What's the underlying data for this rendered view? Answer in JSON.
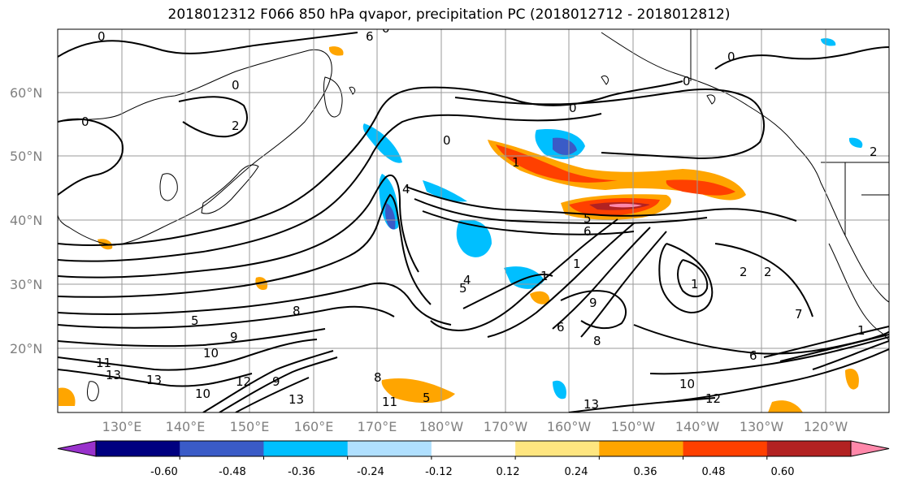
{
  "title": "2018012312 F066 850 hPa qvapor, precipitation PC (2018012712 - 2018012812)",
  "lat_labels": [
    "60°N",
    "50°N",
    "40°N",
    "30°N",
    "20°N"
  ],
  "lon_labels": [
    "130°E",
    "140°E",
    "150°E",
    "160°E",
    "170°E",
    "180°W",
    "170°W",
    "160°W",
    "150°W",
    "140°W",
    "130°W",
    "120°W"
  ],
  "colorbar": {
    "colors": [
      "#9932cc",
      "#000080",
      "#3a5bc7",
      "#00bfff",
      "#b0e0ff",
      "#ffffff",
      "#ffe680",
      "#ffa500",
      "#ff4000",
      "#b22222",
      "#ff88aa"
    ],
    "tick_labels": [
      "-0.60",
      "-0.48",
      "-0.36",
      "-0.24",
      "-0.12",
      "0.12",
      "0.24",
      "0.36",
      "0.48",
      "0.60"
    ]
  },
  "contour_labels": [
    "0",
    "0",
    "0",
    "0",
    "0",
    "2",
    "6",
    "0",
    "1",
    "4",
    "0",
    "1",
    "2",
    "5",
    "8",
    "9",
    "5",
    "10",
    "11",
    "13",
    "13",
    "12",
    "8",
    "10",
    "11",
    "5",
    "9",
    "13",
    "1",
    "4",
    "1",
    "5",
    "2",
    "6",
    "9",
    "8",
    "10",
    "12",
    "13",
    "1",
    "6",
    "7",
    "2",
    "0",
    "6"
  ]
}
